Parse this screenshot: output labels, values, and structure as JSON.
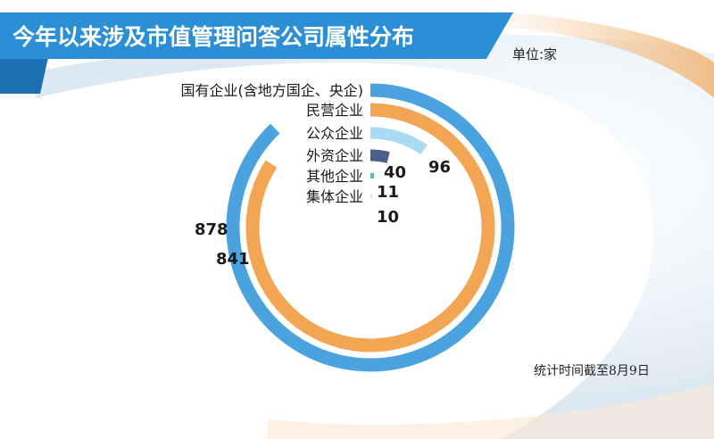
{
  "title": "今年以来涉及市值管理问答公司属性分布",
  "unit": "单位:家",
  "note": "统计时间截至8月9日",
  "colors": {
    "header": "#2b8fd6",
    "header_dark": "#1b6fb3",
    "accent_orange": "#f2b779"
  },
  "chart_data": {
    "type": "radial-bar",
    "categories": [
      "国有企业(含地方国企、央企)",
      "民营企业",
      "公众企业",
      "外资企业",
      "其他企业",
      "集体企业"
    ],
    "values": [
      878,
      841,
      96,
      40,
      11,
      10
    ],
    "value_labels": [
      "878",
      "841",
      "96",
      "40",
      "11",
      "10"
    ],
    "colors": [
      "#4aa3de",
      "#f2a552",
      "#a9dcf3",
      "#4a5f8a",
      "#48c79a",
      "#f3e3ad"
    ],
    "max": 1000
  }
}
